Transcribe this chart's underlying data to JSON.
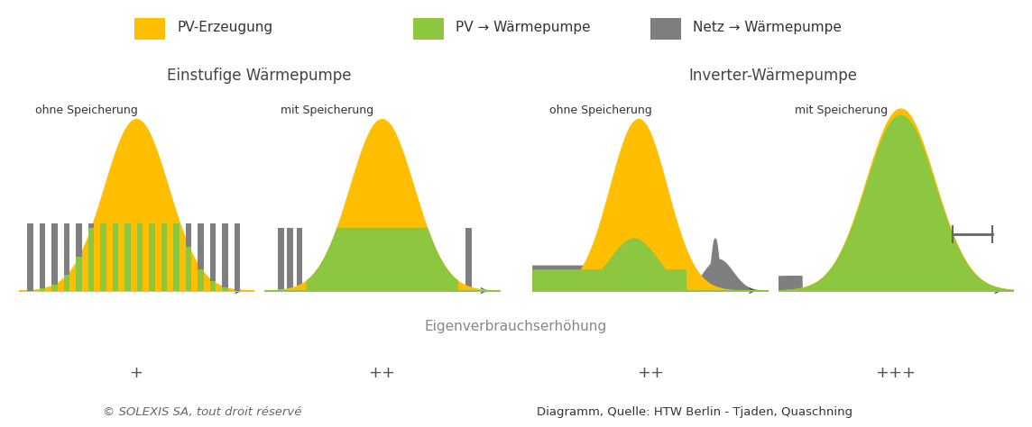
{
  "legend_items": [
    {
      "label": "PV-Erzeugung",
      "color": "#FFBF00"
    },
    {
      "label": "PV → Wärmepumpe",
      "color": "#8DC63F"
    },
    {
      "label": "Netz → Wärmepumpe",
      "color": "#7F7F7F"
    }
  ],
  "group_labels": [
    "Einstufige Wärmepumpe",
    "Inverter-Wärmepumpe"
  ],
  "subplot_labels": [
    "ohne Speicherung",
    "mit Speicherung",
    "ohne Speicherung",
    "mit Speicherung"
  ],
  "rating_label": "Eigenverbrauchserhöhung",
  "ratings": [
    "+",
    "++",
    "++",
    "+++"
  ],
  "footer_left": "© SOLEXIS SA, tout droit réservé",
  "footer_right": "Diagramm, Quelle: HTW Berlin - Tjaden, Quaschning",
  "bg_color": "#FFFFFF",
  "panel_bg": "#E5E5E5",
  "header_bg": "#D8D8D8",
  "rating_bg": "#D0D0D0",
  "orange": "#FFBF00",
  "green": "#8DC63F",
  "gray": "#7F7F7F"
}
